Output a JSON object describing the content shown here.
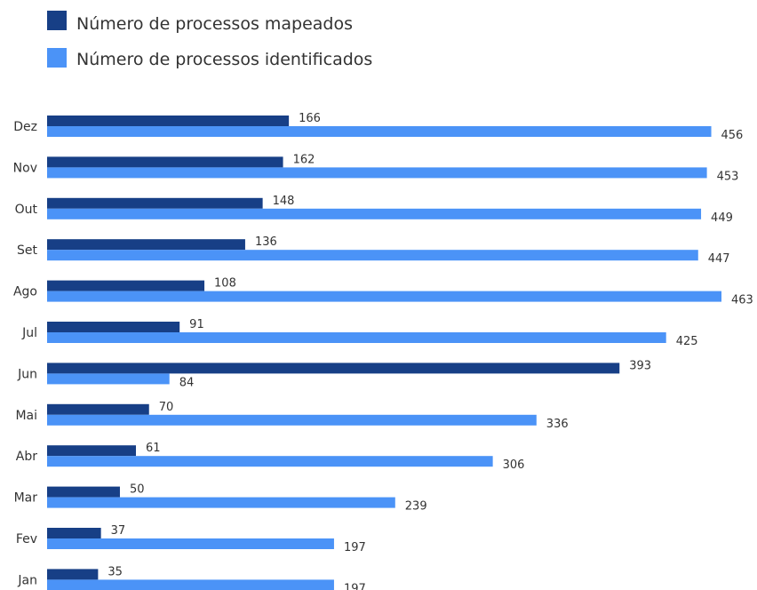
{
  "chart_data": {
    "type": "bar",
    "orientation": "horizontal",
    "categories": [
      "Dez",
      "Nov",
      "Out",
      "Set",
      "Ago",
      "Jul",
      "Jun",
      "Mai",
      "Abr",
      "Mar",
      "Fev",
      "Jan"
    ],
    "series": [
      {
        "name": "Número de processos mapeados",
        "color": "#173f86",
        "values": [
          166,
          162,
          148,
          136,
          108,
          91,
          393,
          70,
          61,
          50,
          37,
          35
        ]
      },
      {
        "name": "Número de processos identificados",
        "color": "#4b93f7",
        "values": [
          456,
          453,
          449,
          447,
          463,
          425,
          84,
          336,
          306,
          239,
          197,
          197
        ]
      }
    ],
    "xlim": [
      0,
      463
    ],
    "grid": false,
    "legend": "top-left"
  }
}
